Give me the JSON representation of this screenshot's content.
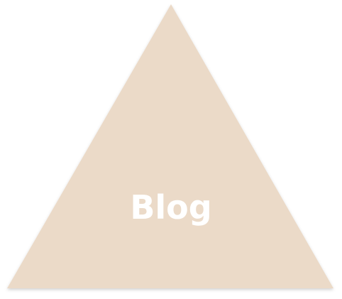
{
  "label": "Blog",
  "colors": {
    "triangle_fill": "#ebdac8",
    "label_text": "#ffffff",
    "background": "#ffffff"
  }
}
